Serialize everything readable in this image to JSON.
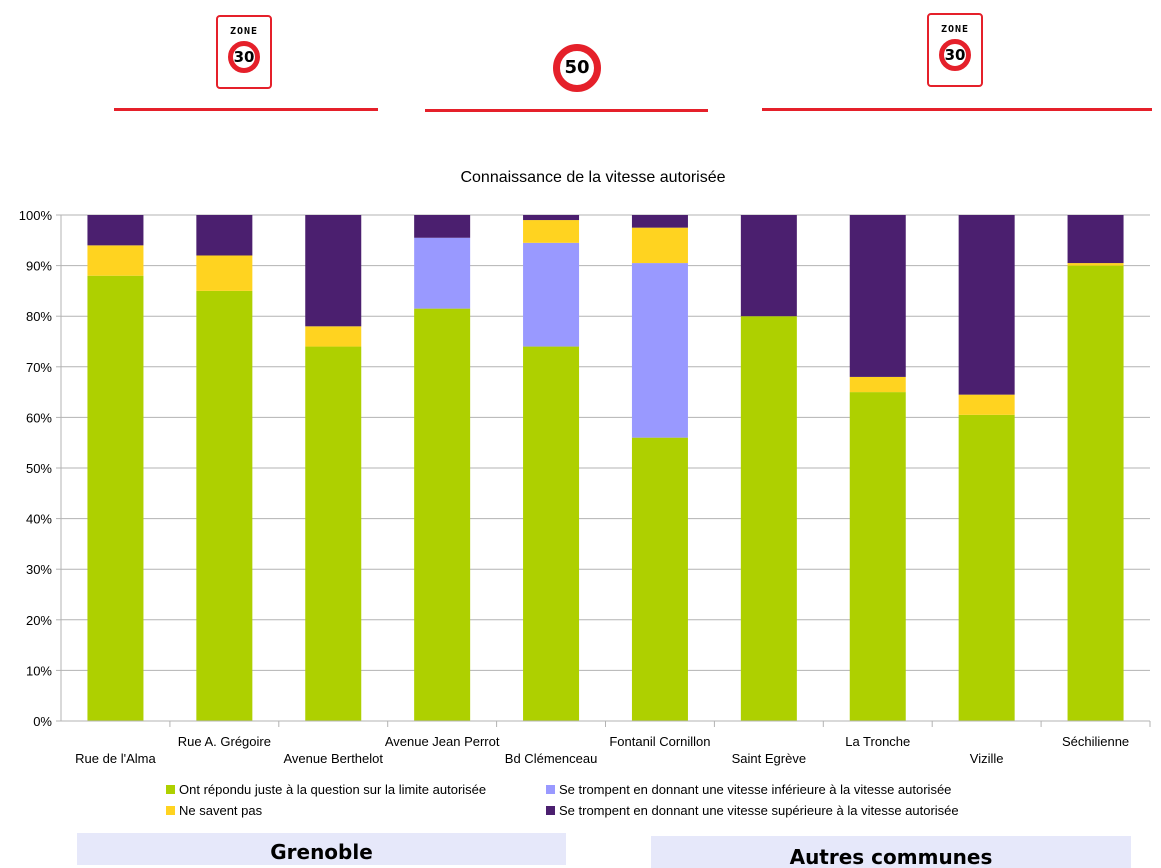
{
  "signs": [
    {
      "zone_word": "ZONE",
      "limit": "30"
    },
    {
      "limit": "50"
    },
    {
      "zone_word": "ZONE",
      "limit": "30"
    }
  ],
  "colors": {
    "correct": "#aed000",
    "dont_know": "#ffd320",
    "lower": "#9999ff",
    "higher": "#4b1f6f",
    "sign_red": "#e5202a",
    "group_box": "#e6e8fa"
  },
  "groups": {
    "grenoble": "Grenoble",
    "others": "Autres communes"
  },
  "chart_data": {
    "type": "bar",
    "stacked": true,
    "title": "Connaissance de la vitesse autorisée",
    "categories": [
      "Rue de l'Alma",
      "Rue A. Grégoire",
      "Avenue Berthelot",
      "Avenue Jean Perrot",
      "Bd Clémenceau",
      "Fontanil Cornillon",
      "Saint Egrève",
      "La Tronche",
      "Vizille",
      "Séchilienne"
    ],
    "series": [
      {
        "name": "Ont répondu juste à la question sur la limite autorisée",
        "color": "#aed000",
        "values": [
          88,
          85,
          74,
          81.5,
          74,
          56,
          80,
          65,
          60.5,
          90
        ]
      },
      {
        "name": "Ne savent pas",
        "color": "#ffd320",
        "values": [
          6,
          7,
          4,
          0,
          4.5,
          7,
          0,
          3,
          4,
          0.5
        ]
      },
      {
        "name": "Se trompent en donnant une vitesse inférieure à la vitesse autorisée",
        "color": "#9999ff",
        "values": [
          0,
          0,
          0,
          14,
          20.5,
          34.5,
          0,
          0,
          0,
          0
        ]
      },
      {
        "name": "Se trompent en donnant une vitesse supérieure à la vitesse autorisée",
        "color": "#4b1f6f",
        "values": [
          6,
          8,
          22,
          4.5,
          1,
          2.5,
          20,
          32,
          35.5,
          9.5
        ]
      }
    ],
    "stack_order": [
      0,
      2,
      1,
      3
    ],
    "yticks": [
      "0%",
      "10%",
      "20%",
      "30%",
      "40%",
      "50%",
      "60%",
      "70%",
      "80%",
      "90%",
      "100%"
    ],
    "ylim": [
      0,
      100
    ],
    "grid": true,
    "legend_position": "bottom"
  }
}
